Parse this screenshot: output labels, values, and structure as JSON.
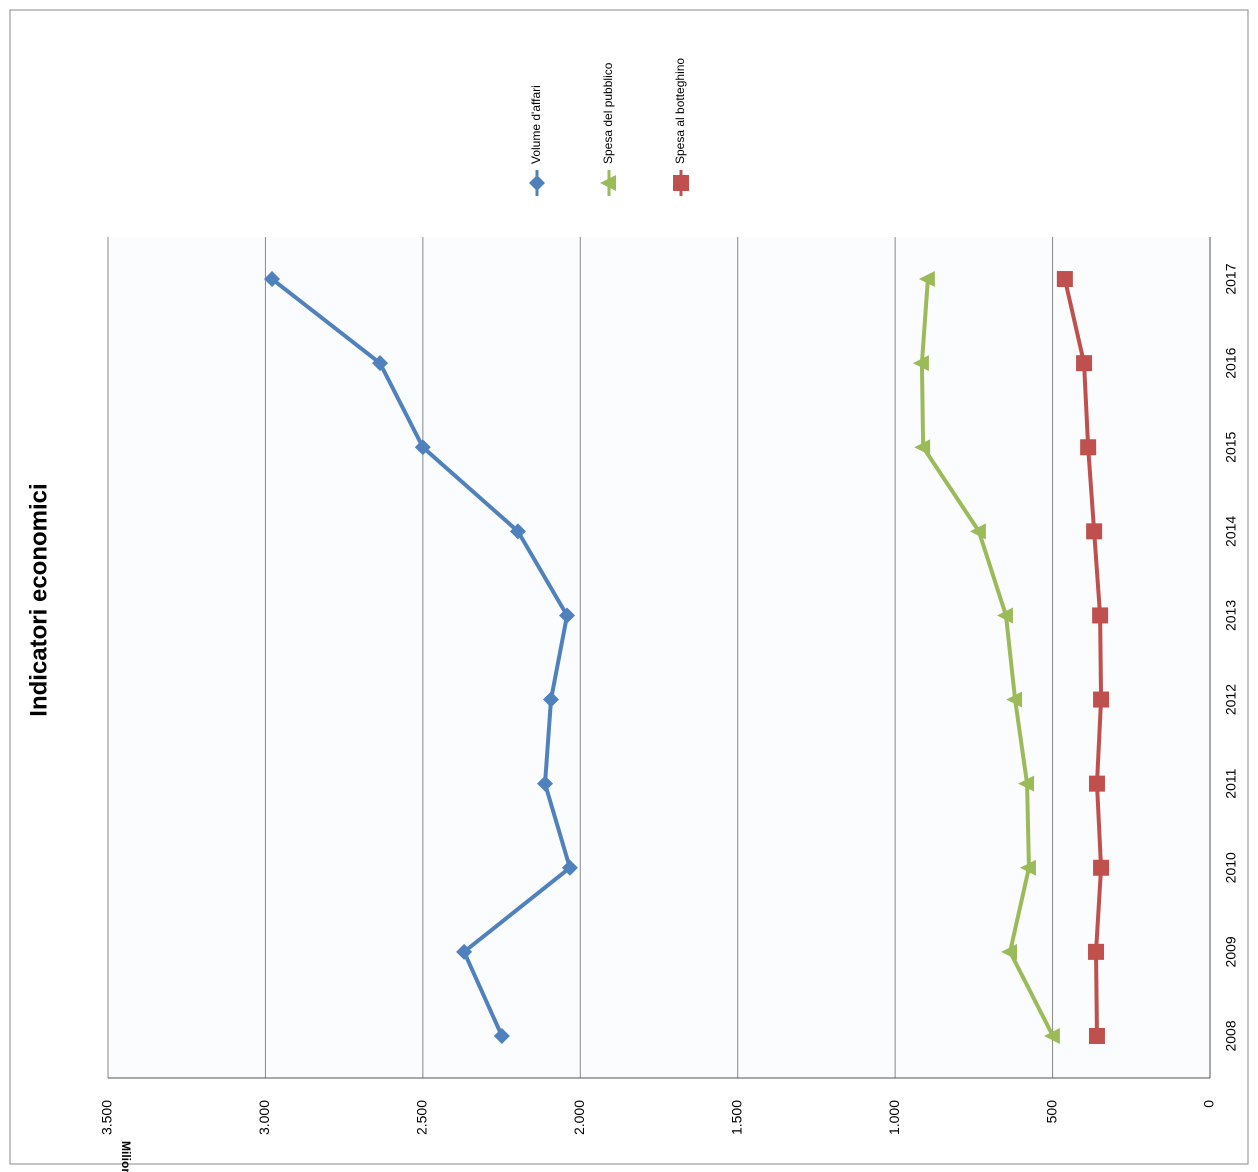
{
  "chart_data": {
    "type": "line",
    "title": "Indicatori economici",
    "ylabel": "Milioni",
    "categories": [
      "2008",
      "2009",
      "2010",
      "2011",
      "2012",
      "2013",
      "2014",
      "2015",
      "2016",
      "2017"
    ],
    "series": [
      {
        "name": "Volume d'affari",
        "color": "#4f81bd",
        "marker": "diamond",
        "values": [
          2249,
          2369,
          2033,
          2112,
          2093,
          2042,
          2198,
          2500,
          2636,
          2979
        ]
      },
      {
        "name": "Spesa del pubblico",
        "color": "#9bbb59",
        "marker": "triangle",
        "values": [
          499,
          635,
          575,
          581,
          619,
          648,
          734,
          911,
          915,
          896
        ]
      },
      {
        "name": "Spesa al botteghino",
        "color": "#c0504d",
        "marker": "square",
        "values": [
          359,
          362,
          346,
          359,
          346,
          349,
          368,
          387,
          400,
          461
        ]
      }
    ],
    "ylim": [
      0,
      3500
    ],
    "yticks": [
      0,
      500,
      {
        "value": 1000,
        "label": "1.000"
      },
      {
        "value": 1500,
        "label": "1.500"
      },
      {
        "value": 2000,
        "label": "2.000"
      },
      {
        "value": 2500,
        "label": "2.500"
      },
      {
        "value": 3000,
        "label": "3.000"
      },
      {
        "value": 3500,
        "label": "3.500"
      }
    ],
    "grid": true
  }
}
